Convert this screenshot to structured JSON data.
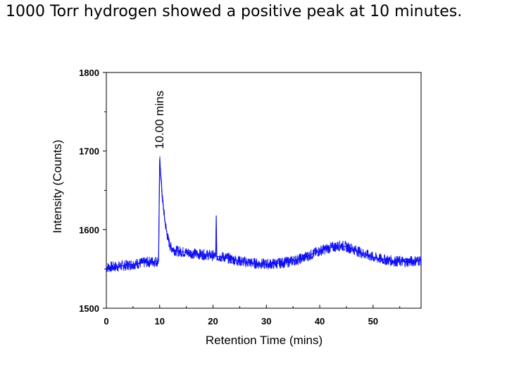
{
  "slide": {
    "title": "1000 Torr hydrogen showed a positive peak at 10 minutes."
  },
  "chart_data": {
    "type": "line",
    "title": "",
    "xlabel": "Retention Time (mins)",
    "ylabel": "Intensity (Counts)",
    "xlim": [
      0,
      59
    ],
    "ylim": [
      1500,
      1800
    ],
    "xticks": [
      0,
      10,
      20,
      30,
      40,
      50
    ],
    "yticks": [
      1500,
      1600,
      1700,
      1800
    ],
    "line_color": "#1010ee",
    "series": [
      {
        "name": "signal",
        "x": [
          0,
          2,
          4,
          6,
          8,
          9.8,
          10.0,
          10.2,
          10.5,
          11,
          11.5,
          12,
          13,
          15,
          17,
          19,
          20.5,
          20.6,
          20.7,
          22,
          25,
          28,
          30,
          32,
          34,
          36,
          38,
          40,
          42,
          44,
          46,
          48,
          50,
          52,
          54,
          56,
          59
        ],
        "y": [
          1552,
          1553,
          1555,
          1557,
          1559,
          1560,
          1690,
          1670,
          1640,
          1610,
          1590,
          1578,
          1573,
          1571,
          1569,
          1568,
          1566,
          1618,
          1566,
          1565,
          1560,
          1557,
          1556,
          1557,
          1559,
          1562,
          1567,
          1573,
          1577,
          1580,
          1576,
          1570,
          1565,
          1562,
          1560,
          1559,
          1561
        ]
      }
    ],
    "annotations": [
      {
        "text": "10.00 mins",
        "x": 10.0,
        "y": 1690
      }
    ]
  }
}
